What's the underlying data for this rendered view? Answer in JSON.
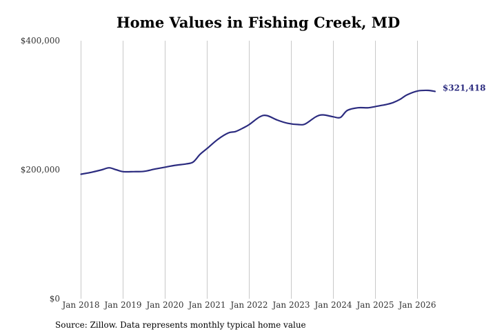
{
  "source_note": "Source: Zillow. Data represents monthly typical home value",
  "colors": {
    "line": "#2b2b7f",
    "grid": "#c8c8c8"
  },
  "chart_data": {
    "type": "line",
    "title": "Home Values in Fishing Creek, MD",
    "xlabel": "",
    "ylabel": "",
    "ylim": [
      0,
      400000
    ],
    "yticks": [
      0,
      200000,
      400000
    ],
    "ytick_labels": [
      "$0",
      "$200,000",
      "$400,000"
    ],
    "xticks": [
      "2018-01",
      "2019-01",
      "2020-01",
      "2021-01",
      "2022-01",
      "2023-01",
      "2024-01",
      "2025-01",
      "2026-01"
    ],
    "xtick_labels": [
      "Jan 2018",
      "Jan 2019",
      "Jan 2020",
      "Jan 2021",
      "Jan 2022",
      "Jan 2023",
      "Jan 2024",
      "Jan 2025",
      "Jan 2026"
    ],
    "grid": "vertical",
    "end_label": "$321,418",
    "series": [
      {
        "x": [
          "2018-01",
          "2018-04",
          "2018-07",
          "2018-09",
          "2018-11",
          "2019-01",
          "2019-04",
          "2019-07",
          "2019-10",
          "2020-01",
          "2020-04",
          "2020-07",
          "2020-09",
          "2020-11",
          "2021-01",
          "2021-04",
          "2021-07",
          "2021-09",
          "2021-11",
          "2022-01",
          "2022-04",
          "2022-06",
          "2022-09",
          "2022-12",
          "2023-03",
          "2023-05",
          "2023-08",
          "2023-10",
          "2024-01",
          "2024-03",
          "2024-05",
          "2024-08",
          "2024-11",
          "2025-01",
          "2025-04",
          "2025-06",
          "2025-08",
          "2025-10",
          "2026-01",
          "2026-04",
          "2026-06"
        ],
        "values": [
          193000,
          196000,
          200000,
          203000,
          200000,
          197000,
          197000,
          197500,
          201000,
          204000,
          207000,
          209000,
          212000,
          224000,
          233000,
          247000,
          257000,
          259000,
          264000,
          270000,
          282000,
          284000,
          277000,
          272000,
          270000,
          271000,
          282000,
          285000,
          282000,
          281000,
          292000,
          296000,
          296000,
          298000,
          301000,
          304000,
          309000,
          316000,
          322000,
          323000,
          321418
        ]
      }
    ]
  }
}
